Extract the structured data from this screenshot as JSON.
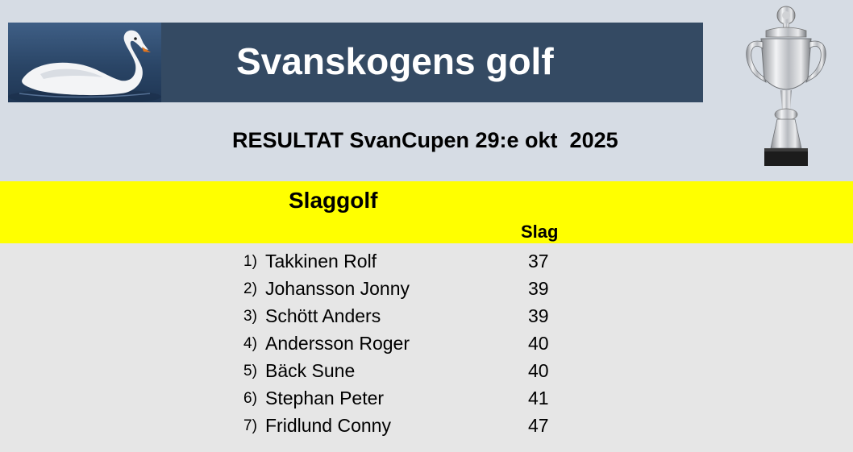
{
  "header": {
    "title": "Svanskogens golf",
    "subtitle": "RESULTAT SvanCupen 29:e okt  2025"
  },
  "section": {
    "title": "Slaggolf",
    "column_header": "Slag"
  },
  "results": [
    {
      "rank": "1)",
      "name": "Takkinen Rolf",
      "score": "37"
    },
    {
      "rank": "2)",
      "name": "Johansson Jonny",
      "score": "39"
    },
    {
      "rank": "3)",
      "name": "Schött Anders",
      "score": "39"
    },
    {
      "rank": "4)",
      "name": "Andersson Roger",
      "score": "40"
    },
    {
      "rank": "5)",
      "name": "Bäck Sune",
      "score": "40"
    },
    {
      "rank": "6)",
      "name": "Stephan Peter",
      "score": "41"
    },
    {
      "rank": "7)",
      "name": "Fridlund Conny",
      "score": "47"
    }
  ],
  "colors": {
    "banner": "#344a63",
    "background": "#d6dce4",
    "highlight": "#ffff00",
    "results_background": "#e6e6e6"
  }
}
